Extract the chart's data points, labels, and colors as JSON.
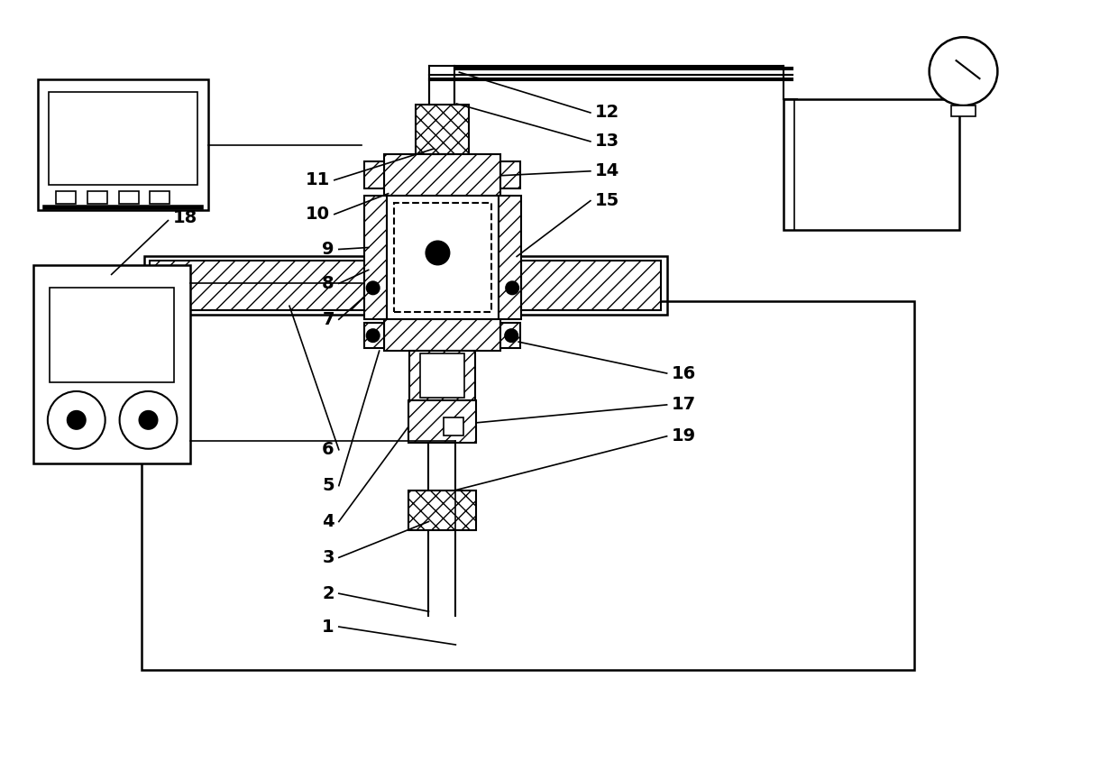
{
  "bg": "#ffffff",
  "figsize": [
    12.4,
    8.44
  ],
  "dpi": 100,
  "lw_main": 1.8,
  "lw_med": 1.5,
  "lw_thin": 1.2
}
